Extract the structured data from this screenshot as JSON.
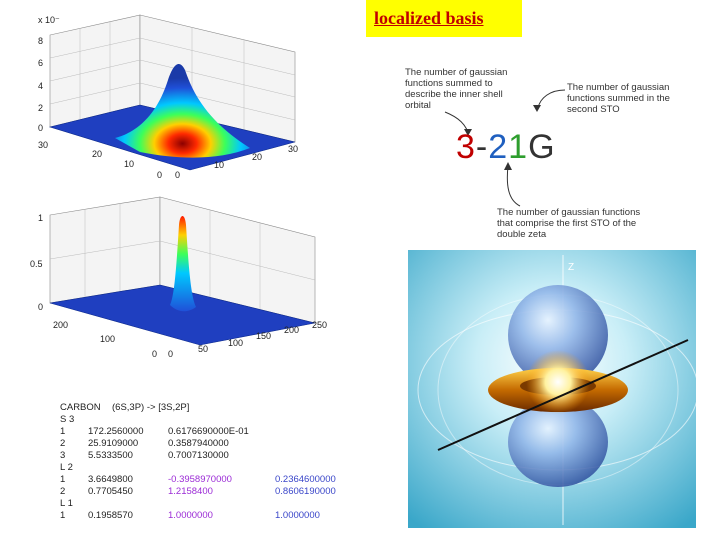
{
  "title": "localized basis",
  "plot1": {
    "exponent_label": "x 10⁻",
    "zticks": [
      "8",
      "6",
      "4",
      "2",
      "0"
    ],
    "yticks": [
      "30",
      "20",
      "10",
      "0"
    ],
    "xticks": [
      "0",
      "10",
      "20",
      "30"
    ]
  },
  "plot2": {
    "zticks": [
      "1",
      "0.5",
      "0"
    ],
    "yticks": [
      "200",
      "100",
      "0"
    ],
    "xticks": [
      "0",
      "50",
      "100",
      "150",
      "200",
      "250"
    ]
  },
  "annotation": {
    "left": [
      "The number of gaussian",
      "functions summed to",
      "describe the inner shell",
      "orbital"
    ],
    "right": [
      "The number of gaussian",
      "functions summed in the",
      "second STO"
    ],
    "bottom": [
      "The number of gaussian functions",
      "that comprise the first STO of the",
      "double zeta"
    ]
  },
  "basis": {
    "parts": [
      "3",
      "-",
      "2",
      "1",
      "G"
    ],
    "colors": [
      "#c00000",
      "#333333",
      "#1f5fbf",
      "#2e9e2e",
      "#333333"
    ]
  },
  "orbital_image": {
    "axis_label": "Z"
  },
  "basis_table": {
    "header_left": "CARBON",
    "header_right": "(6S,3P) -> [3S,2P]",
    "s_label": "S 3",
    "s_rows": [
      [
        "1",
        "172.2560000",
        "0.6176690000E-01"
      ],
      [
        "2",
        "25.9109000",
        "0.3587940000"
      ],
      [
        "3",
        "5.5333500",
        "0.7007130000"
      ]
    ],
    "l2_label": "L 2",
    "l2_rows": [
      [
        "1",
        "3.6649800",
        "-0.3958970000",
        "0.2364600000"
      ],
      [
        "2",
        "0.7705450",
        "1.2158400",
        "0.8606190000"
      ]
    ],
    "l1_label": "L 1",
    "l1_rows": [
      [
        "1",
        "0.1958570",
        "1.0000000",
        "1.0000000"
      ]
    ],
    "colors": {
      "col2": "#222222",
      "col3": "#9b2bd6",
      "col4": "#3a46c9"
    }
  }
}
